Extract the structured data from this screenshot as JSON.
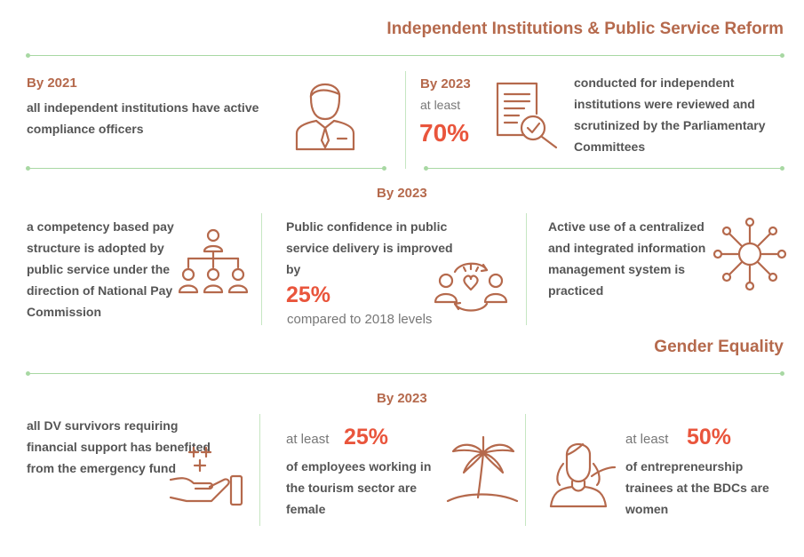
{
  "sections": {
    "reform_title": "Independent Institutions & Public Service Reform",
    "gender_title": "Gender Equality"
  },
  "row1": {
    "left": {
      "by": "By 2021",
      "text": "all independent institutions have active compliance officers"
    },
    "right": {
      "by": "By 2023",
      "at_least": "at least",
      "percent": "70%",
      "text": "conducted for independent institutions were reviewed and scrutinized by the Parliamentary Committees"
    }
  },
  "row2": {
    "by": "By 2023",
    "col1": {
      "text": "a competency based pay structure is adopted by public service under the direction of National Pay Commission"
    },
    "col2": {
      "text": "Public confidence in public service delivery is improved by",
      "percent": "25%",
      "note": "compared to 2018 levels"
    },
    "col3": {
      "text": "Active use of a centralized and integrated information management system is practiced"
    }
  },
  "row3": {
    "by": "By 2023",
    "col1": {
      "text": "all DV survivors requiring financial support has benefited from the emergency fund"
    },
    "col2": {
      "at_least": "at least",
      "percent": "25%",
      "text": "of employees working in the tourism sector are female"
    },
    "col3": {
      "at_least": "at least",
      "percent": "50%",
      "text": "of entrepreneurship trainees at the BDCs are women"
    }
  },
  "icons": {
    "officer": "officer-icon",
    "document_review": "document-magnifier-icon",
    "hierarchy": "org-chart-icon",
    "confidence": "people-heart-icon",
    "network": "network-hub-icon",
    "hand": "hand-plus-icon",
    "palm": "palm-tree-icon",
    "woman": "woman-icon"
  },
  "colors": {
    "accent": "#b5694c",
    "highlight": "#e9553c",
    "divider": "#a8d8a3",
    "text": "#555555"
  }
}
